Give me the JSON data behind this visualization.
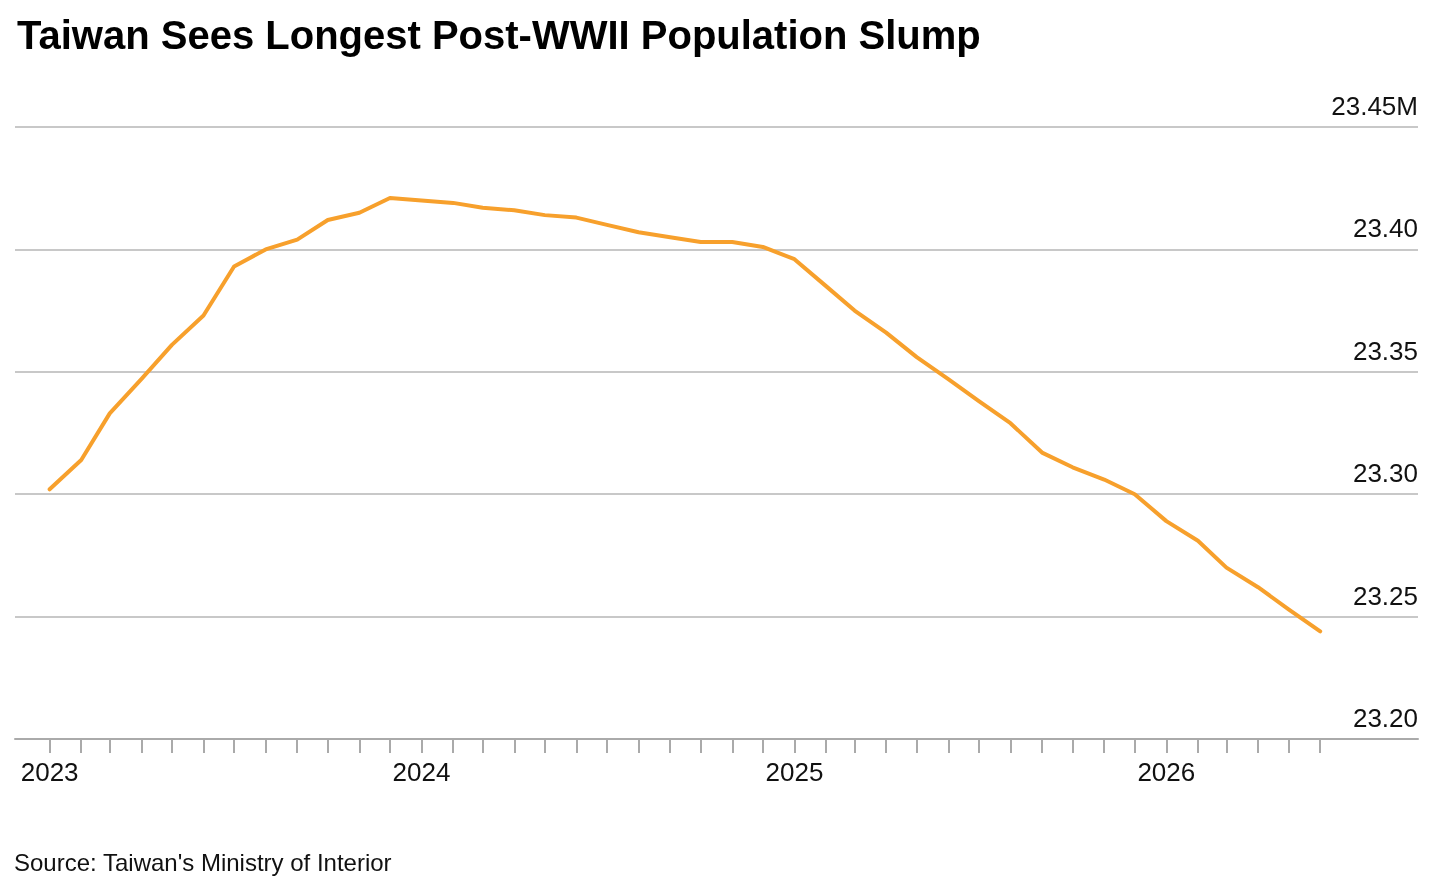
{
  "chart_data": {
    "type": "line",
    "title": "Taiwan Sees Longest Post-WWII Population Slump",
    "annotations": [
      "Source: Taiwan's Ministry of Interior"
    ],
    "x": [
      "2023-01",
      "2023-02",
      "2023-03",
      "2023-04",
      "2023-05",
      "2023-06",
      "2023-07",
      "2023-08",
      "2023-09",
      "2023-10",
      "2023-11",
      "2023-12",
      "2024-01",
      "2024-02",
      "2024-03",
      "2024-04",
      "2024-05",
      "2024-06",
      "2024-07",
      "2024-08",
      "2024-09",
      "2024-10",
      "2024-11",
      "2024-12",
      "2025-01",
      "2025-02",
      "2025-03",
      "2025-04",
      "2025-05",
      "2025-06",
      "2025-07",
      "2025-08",
      "2025-09",
      "2025-10",
      "2025-11",
      "2025-12",
      "2026-01",
      "2026-02",
      "2026-03",
      "2026-04",
      "2026-05",
      "2026-06"
    ],
    "series": [
      {
        "color": "#f7a02c",
        "values": [
          23.302,
          23.314,
          23.333,
          23.347,
          23.361,
          23.373,
          23.393,
          23.4,
          23.404,
          23.412,
          23.415,
          23.421,
          23.42,
          23.419,
          23.417,
          23.416,
          23.414,
          23.413,
          23.41,
          23.407,
          23.405,
          23.403,
          23.403,
          23.401,
          23.396,
          23.385,
          23.375,
          23.366,
          23.356,
          23.347,
          23.338,
          23.329,
          23.317,
          23.311,
          23.306,
          23.3,
          23.289,
          23.281,
          23.27,
          23.262,
          23.253,
          23.244
        ]
      }
    ],
    "xlim": [
      "2022-11-28",
      "2026-09-05"
    ],
    "xticks": [
      "2023",
      {
        "value": "2023-02",
        "label": null
      },
      {
        "value": "2023-03",
        "label": null
      },
      {
        "value": "2023-04",
        "label": null
      },
      {
        "value": "2023-05",
        "label": null
      },
      {
        "value": "2023-06",
        "label": null
      },
      {
        "value": "2023-07",
        "label": null
      },
      {
        "value": "2023-08",
        "label": null
      },
      {
        "value": "2023-09",
        "label": null
      },
      {
        "value": "2023-10",
        "label": null
      },
      {
        "value": "2023-11",
        "label": null
      },
      {
        "value": "2023-12",
        "label": null
      },
      "2024",
      {
        "value": "2024-02",
        "label": null
      },
      {
        "value": "2024-03",
        "label": null
      },
      {
        "value": "2024-04",
        "label": null
      },
      {
        "value": "2024-05",
        "label": null
      },
      {
        "value": "2024-06",
        "label": null
      },
      {
        "value": "2024-07",
        "label": null
      },
      {
        "value": "2024-08",
        "label": null
      },
      {
        "value": "2024-09",
        "label": null
      },
      {
        "value": "2024-10",
        "label": null
      },
      {
        "value": "2024-11",
        "label": null
      },
      {
        "value": "2024-12",
        "label": null
      },
      "2025",
      {
        "value": "2025-02",
        "label": null
      },
      {
        "value": "2025-03",
        "label": null
      },
      {
        "value": "2025-04",
        "label": null
      },
      {
        "value": "2025-05",
        "label": null
      },
      {
        "value": "2025-06",
        "label": null
      },
      {
        "value": "2025-07",
        "label": null
      },
      {
        "value": "2025-08",
        "label": null
      },
      {
        "value": "2025-09",
        "label": null
      },
      {
        "value": "2025-10",
        "label": null
      },
      {
        "value": "2025-11",
        "label": null
      },
      {
        "value": "2025-12",
        "label": null
      },
      "2026",
      {
        "value": "2026-02",
        "label": null
      },
      {
        "value": "2026-03",
        "label": null
      },
      {
        "value": "2026-04",
        "label": null
      },
      {
        "value": "2026-05",
        "label": null
      },
      {
        "value": "2026-06",
        "label": null
      }
    ],
    "ylim": [
      23.2,
      23.45
    ],
    "yticks": [
      {
        "value": 23.2,
        "label": "23.20"
      },
      23.25,
      {
        "value": 23.3,
        "label": "23.30"
      },
      23.35,
      {
        "value": 23.4,
        "label": "23.40"
      },
      {
        "value": 23.45,
        "label": "23.45M"
      }
    ],
    "grid": "y",
    "marker": "none",
    "line_style": "solid"
  }
}
